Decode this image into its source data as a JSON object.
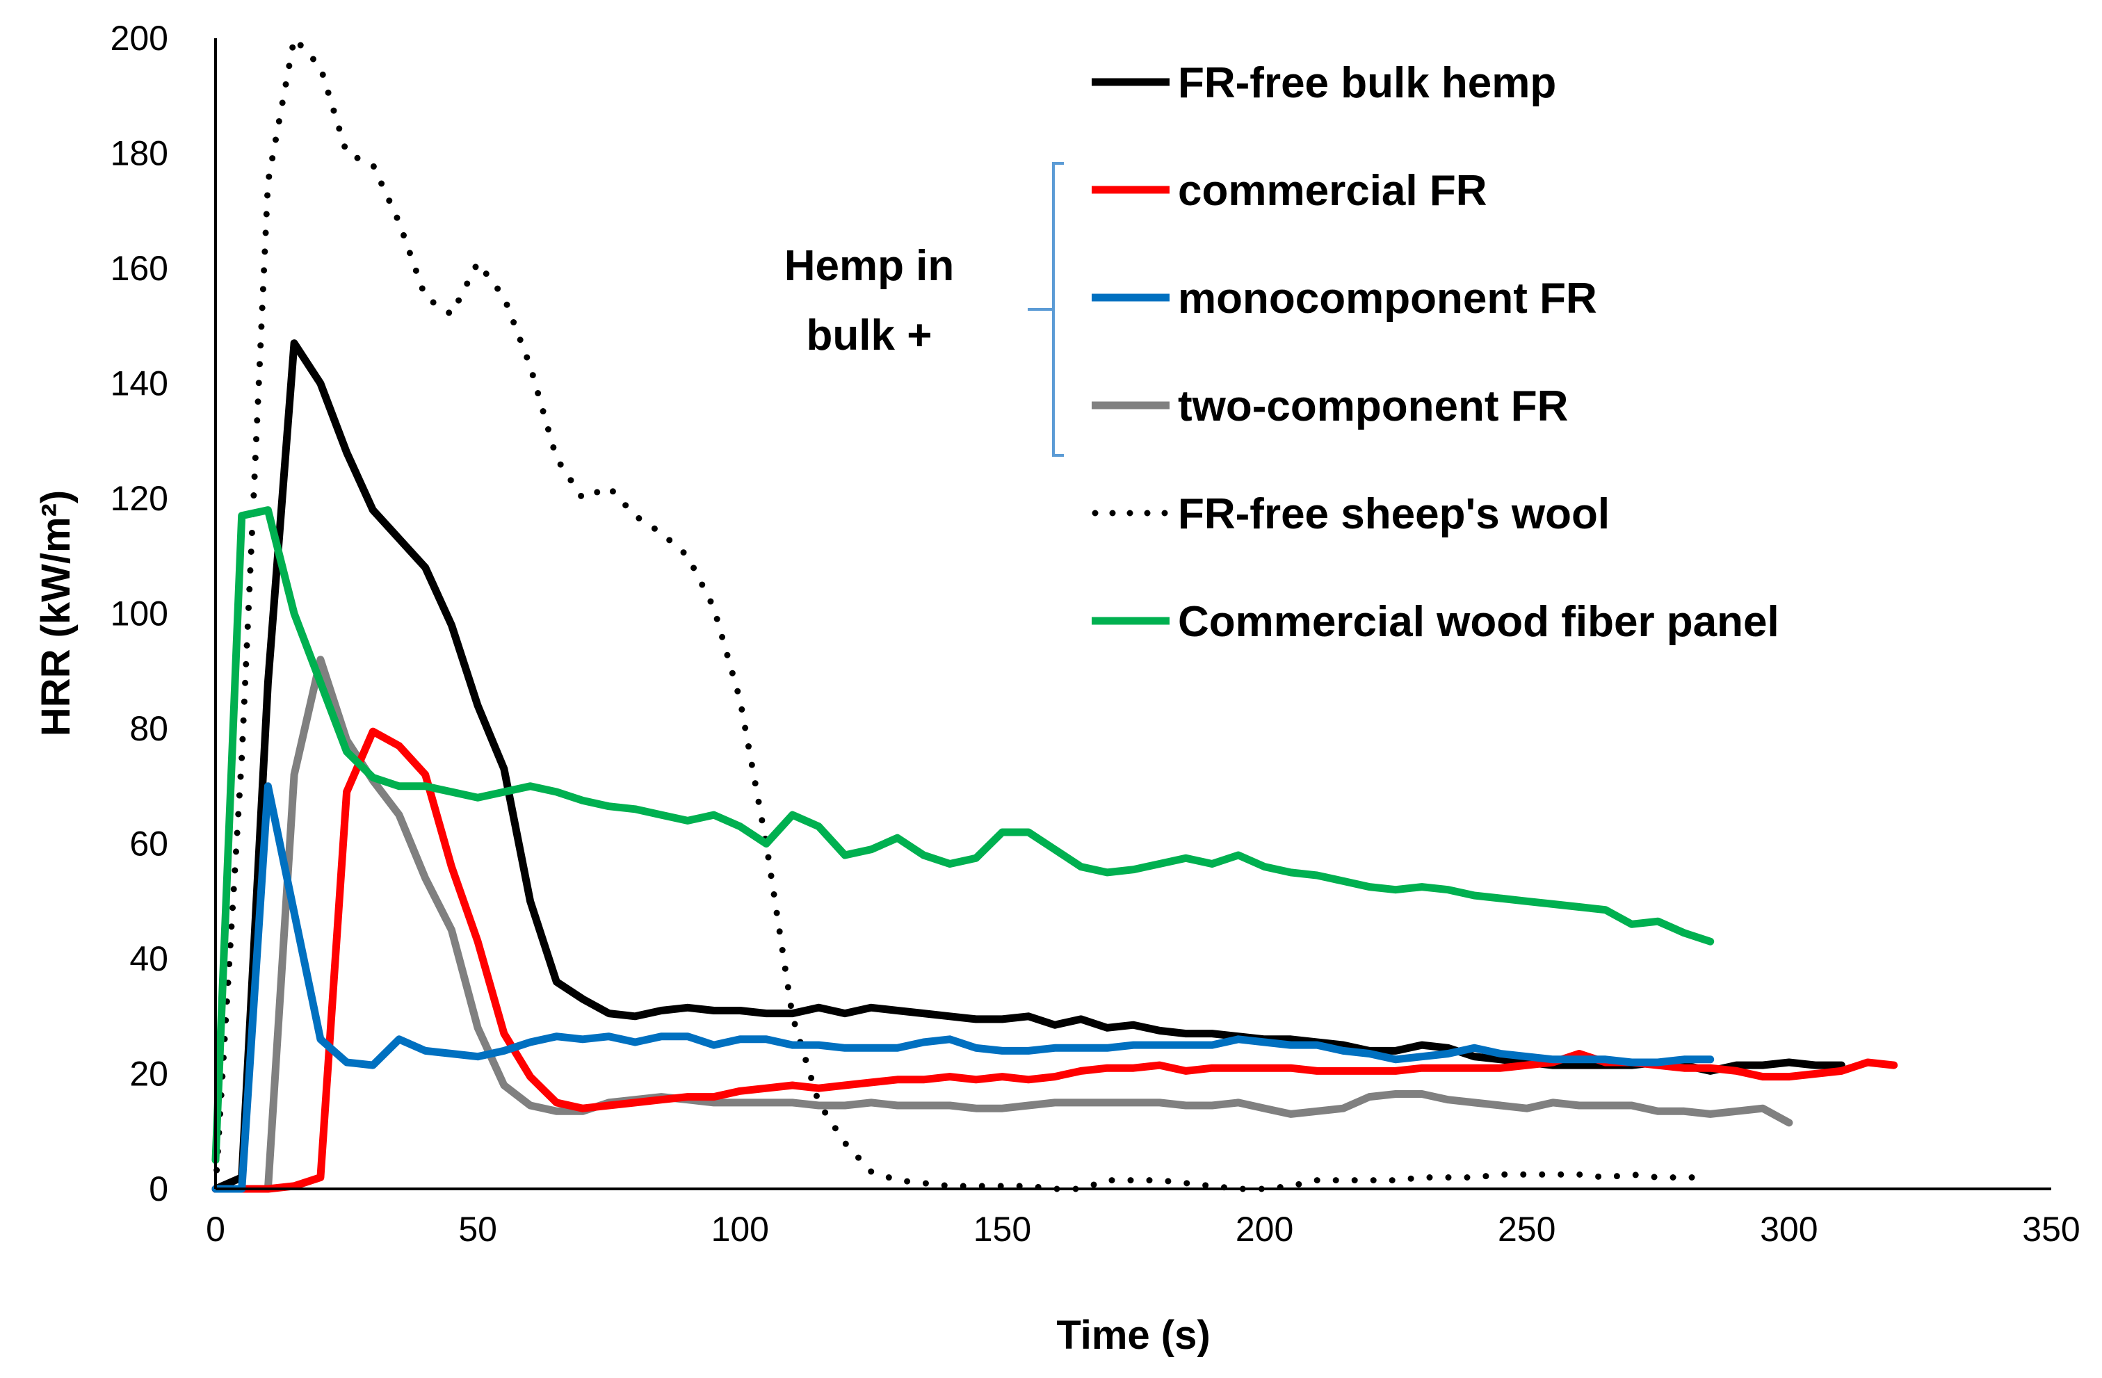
{
  "chart_data": {
    "type": "line",
    "title": "",
    "xlabel": "Time (s)",
    "ylabel": "HRR (kW/m²)",
    "xlim": [
      0,
      350
    ],
    "ylim": [
      0,
      200
    ],
    "xticks": [
      0,
      50,
      100,
      150,
      200,
      250,
      300,
      350
    ],
    "yticks": [
      0,
      20,
      40,
      60,
      80,
      100,
      120,
      140,
      160,
      180,
      200
    ],
    "grid": false,
    "legend_position": "top-right",
    "legend_group_label": [
      "Hemp in",
      "bulk +"
    ],
    "series": [
      {
        "name": "FR-free bulk hemp",
        "color": "#000000",
        "style": "solid",
        "x": [
          0,
          5,
          10,
          15,
          20,
          25,
          30,
          35,
          40,
          45,
          50,
          55,
          60,
          65,
          70,
          75,
          80,
          85,
          90,
          95,
          100,
          105,
          110,
          115,
          120,
          125,
          130,
          135,
          140,
          145,
          150,
          155,
          160,
          165,
          170,
          175,
          180,
          185,
          190,
          195,
          200,
          205,
          210,
          215,
          220,
          225,
          230,
          235,
          240,
          245,
          250,
          255,
          260,
          265,
          270,
          275,
          280,
          285,
          290,
          295,
          300,
          305,
          310
        ],
        "y": [
          0,
          2,
          88,
          147,
          140,
          128,
          118,
          113,
          108,
          98,
          84,
          73,
          50,
          36,
          33,
          30.5,
          30,
          31,
          31.5,
          31,
          31,
          30.5,
          30.5,
          31.5,
          30.5,
          31.5,
          31,
          30.5,
          30,
          29.5,
          29.5,
          30,
          28.5,
          29.5,
          28,
          28.5,
          27.5,
          27,
          27,
          26.5,
          26,
          26,
          25.5,
          25,
          24,
          24,
          25,
          24.5,
          23,
          22.5,
          22,
          21.5,
          21.5,
          21.5,
          21.5,
          22,
          21.5,
          20.5,
          21.5,
          21.5,
          22,
          21.5,
          21.5
        ]
      },
      {
        "name": "commercial FR",
        "color": "#ff0000",
        "style": "solid",
        "x": [
          0,
          5,
          10,
          15,
          20,
          25,
          30,
          35,
          40,
          45,
          50,
          55,
          60,
          65,
          70,
          75,
          80,
          85,
          90,
          95,
          100,
          105,
          110,
          115,
          120,
          125,
          130,
          135,
          140,
          145,
          150,
          155,
          160,
          165,
          170,
          175,
          180,
          185,
          190,
          195,
          200,
          205,
          210,
          215,
          220,
          225,
          230,
          235,
          240,
          245,
          250,
          255,
          260,
          265,
          270,
          275,
          280,
          285,
          290,
          295,
          300,
          305,
          310,
          315,
          320
        ],
        "y": [
          0,
          0,
          0,
          0.5,
          2,
          69,
          79.5,
          77,
          72,
          56,
          43,
          27,
          19.5,
          15,
          14,
          14.5,
          15,
          15.5,
          16,
          16,
          17,
          17.5,
          18,
          17.5,
          18,
          18.5,
          19,
          19,
          19.5,
          19,
          19.5,
          19,
          19.5,
          20.5,
          21,
          21,
          21.5,
          20.5,
          21,
          21,
          21,
          21,
          20.5,
          20.5,
          20.5,
          20.5,
          21,
          21,
          21,
          21,
          21.5,
          22,
          23.5,
          22,
          22,
          21.5,
          21,
          21,
          20.5,
          19.5,
          19.5,
          20,
          20.5,
          22,
          21.5
        ]
      },
      {
        "name": "monocomponent FR",
        "color": "#0070c0",
        "style": "solid",
        "x": [
          0,
          5,
          10,
          15,
          20,
          25,
          30,
          35,
          40,
          45,
          50,
          55,
          60,
          65,
          70,
          75,
          80,
          85,
          90,
          95,
          100,
          105,
          110,
          115,
          120,
          125,
          130,
          135,
          140,
          145,
          150,
          155,
          160,
          165,
          170,
          175,
          180,
          185,
          190,
          195,
          200,
          205,
          210,
          215,
          220,
          225,
          230,
          235,
          240,
          245,
          250,
          255,
          260,
          265,
          270,
          275,
          280,
          285
        ],
        "y": [
          0,
          0,
          70,
          48,
          26,
          22,
          21.5,
          26,
          24,
          23.5,
          23,
          24,
          25.5,
          26.5,
          26,
          26.5,
          25.5,
          26.5,
          26.5,
          25,
          26,
          26,
          25,
          25,
          24.5,
          24.5,
          24.5,
          25.5,
          26,
          24.5,
          24,
          24,
          24.5,
          24.5,
          24.5,
          25,
          25,
          25,
          25,
          26,
          25.5,
          25,
          25,
          24,
          23.5,
          22.5,
          23,
          23.5,
          24.5,
          23.5,
          23,
          22.5,
          22.5,
          22.5,
          22,
          22,
          22.5,
          22.5
        ]
      },
      {
        "name": "two-component FR",
        "color": "#808080",
        "style": "solid",
        "x": [
          0,
          5,
          10,
          15,
          20,
          25,
          30,
          35,
          40,
          45,
          50,
          55,
          60,
          65,
          70,
          75,
          80,
          85,
          90,
          95,
          100,
          105,
          110,
          115,
          120,
          125,
          130,
          135,
          140,
          145,
          150,
          155,
          160,
          165,
          170,
          175,
          180,
          185,
          190,
          195,
          200,
          205,
          210,
          215,
          220,
          225,
          230,
          235,
          240,
          245,
          250,
          255,
          260,
          265,
          270,
          275,
          280,
          285,
          290,
          295,
          300
        ],
        "y": [
          0,
          0,
          0,
          72,
          92,
          78,
          71,
          65,
          54,
          45,
          28,
          18,
          14.5,
          13.5,
          13.5,
          15,
          15.5,
          16,
          15.5,
          15,
          15,
          15,
          15,
          14.5,
          14.5,
          15,
          14.5,
          14.5,
          14.5,
          14,
          14,
          14.5,
          15,
          15,
          15,
          15,
          15,
          14.5,
          14.5,
          15,
          14,
          13,
          13.5,
          14,
          16,
          16.5,
          16.5,
          15.5,
          15,
          14.5,
          14,
          15,
          14.5,
          14.5,
          14.5,
          13.5,
          13.5,
          13,
          13.5,
          14,
          11.5
        ]
      },
      {
        "name": "FR-free sheep's wool",
        "color": "#000000",
        "style": "dotted",
        "x": [
          0,
          5,
          10,
          15,
          20,
          25,
          30,
          35,
          40,
          45,
          50,
          55,
          60,
          65,
          70,
          75,
          80,
          85,
          90,
          95,
          100,
          105,
          110,
          115,
          120,
          125,
          130,
          135,
          140,
          145,
          150,
          155,
          160,
          165,
          170,
          175,
          180,
          185,
          190,
          195,
          200,
          205,
          210,
          215,
          220,
          225,
          230,
          235,
          240,
          245,
          250,
          255,
          260,
          265,
          270,
          275,
          280,
          285
        ],
        "y": [
          0,
          75,
          175,
          200,
          195,
          180,
          178,
          168,
          155,
          152,
          161,
          155,
          143,
          127,
          120,
          122,
          117,
          114,
          110,
          101,
          85,
          60,
          30,
          15,
          8,
          3,
          1.5,
          1,
          0.5,
          0.5,
          0.5,
          0.5,
          0,
          0,
          1.5,
          1.5,
          1.5,
          1,
          0.5,
          0,
          0,
          0.5,
          1.5,
          1.5,
          1.5,
          1.5,
          2,
          2,
          2,
          2.5,
          2.5,
          2.5,
          2.5,
          2,
          2.5,
          2,
          2,
          2
        ]
      },
      {
        "name": "Commercial wood fiber panel",
        "color": "#00b050",
        "style": "solid",
        "x": [
          0,
          5,
          10,
          15,
          20,
          25,
          30,
          35,
          40,
          45,
          50,
          55,
          60,
          65,
          70,
          75,
          80,
          85,
          90,
          95,
          100,
          105,
          110,
          115,
          120,
          125,
          130,
          135,
          140,
          145,
          150,
          155,
          160,
          165,
          170,
          175,
          180,
          185,
          190,
          195,
          200,
          205,
          210,
          215,
          220,
          225,
          230,
          235,
          240,
          245,
          250,
          255,
          260,
          265,
          270,
          275,
          280,
          285
        ],
        "y": [
          5,
          117,
          118,
          100,
          88,
          76,
          71.5,
          70,
          70,
          69,
          68,
          69,
          70,
          69,
          67.5,
          66.5,
          66,
          65,
          64,
          65,
          63,
          60,
          65,
          63,
          58,
          59,
          61,
          58,
          56.5,
          57.5,
          62,
          62,
          59,
          56,
          55,
          55.5,
          56.5,
          57.5,
          56.5,
          58,
          56,
          55,
          54.5,
          53.5,
          52.5,
          52,
          52.5,
          52,
          51,
          50.5,
          50,
          49.5,
          49,
          48.5,
          46,
          46.5,
          44.5,
          43
        ]
      }
    ]
  }
}
